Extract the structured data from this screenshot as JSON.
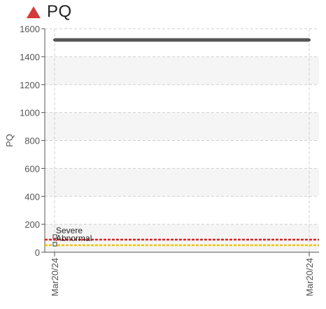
{
  "header": {
    "title": "PQ",
    "alert_icon": "warning-triangle-icon",
    "alert_color": "#d43a3a"
  },
  "chart_data": {
    "type": "line",
    "title": "PQ",
    "ylabel": "PQ",
    "xlabel": "",
    "ylim": [
      0,
      1600
    ],
    "yticks": [
      0,
      200,
      400,
      600,
      800,
      1000,
      1200,
      1400,
      1600
    ],
    "xticks": [
      "Mar20/24",
      "Mar20/24"
    ],
    "grid": true,
    "series": [
      {
        "values": [
          1520,
          1520
        ],
        "color": "#555555"
      }
    ],
    "thresholds": [
      {
        "name": "Severe",
        "value": 90,
        "color": "#e02020"
      },
      {
        "name": "Abnormal",
        "value": 50,
        "color": "#f2c200"
      }
    ]
  }
}
